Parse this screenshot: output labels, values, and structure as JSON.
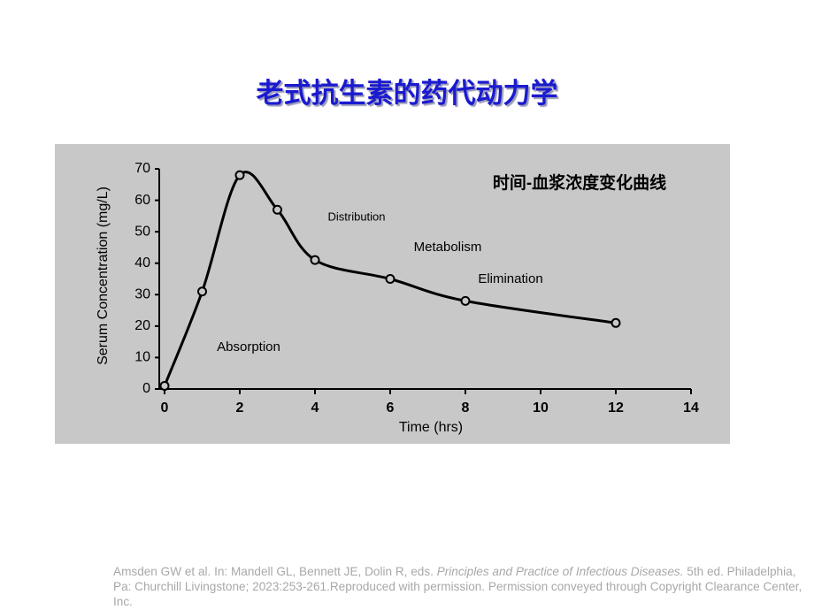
{
  "slide_title": "老式抗生素的药代动力学",
  "chart_data": {
    "type": "line",
    "xlabel": "Time (hrs)",
    "ylabel": "Serum Concentration (mg/L)",
    "x": [
      0,
      1,
      2,
      3,
      4,
      6,
      8,
      12
    ],
    "series": [
      {
        "name": "Serum concentration",
        "color": "#000000",
        "values": [
          1,
          31,
          68,
          57,
          41,
          35,
          28,
          21
        ]
      }
    ],
    "xlim": [
      0,
      14
    ],
    "xticks": [
      0,
      2,
      4,
      6,
      8,
      10,
      12,
      14
    ],
    "ylim": [
      0,
      70
    ],
    "yticks": [
      0,
      10,
      20,
      30,
      40,
      50,
      60,
      70
    ],
    "annotations": [
      "时间-血浆浓度变化曲线",
      "Distribution",
      "Metabolism",
      "Elimination",
      "Absorption"
    ]
  },
  "citation": {
    "part1": "Amsden GW et al. In: Mandell GL, Bennett JE, Dolin R, eds. ",
    "italic": "Principles and Practice of Infectious Diseases.",
    "part2": " 5th ed. Philadelphia, Pa: Churchill Livingstone; 2023:253-261.Reproduced with permission. Permission conveyed through Copyright Clearance Center, Inc."
  }
}
